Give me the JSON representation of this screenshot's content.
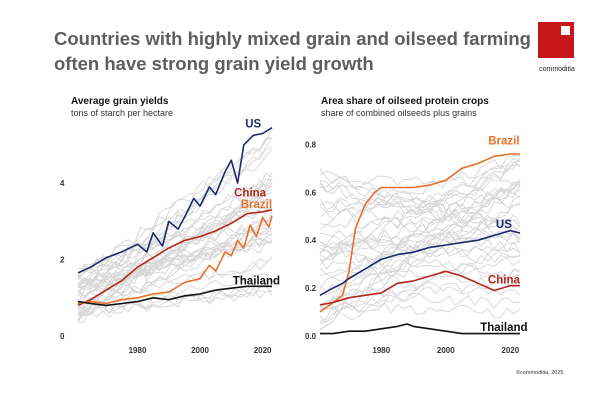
{
  "headline": {
    "line1": "Countries with highly mixed grain and oilseed farming",
    "line2": "often have strong grain yield growth"
  },
  "logo": {
    "text": "commoditia"
  },
  "footer": {
    "credit": "©commoditia, 2025"
  },
  "colors": {
    "US": "#1b2a6b",
    "China": "#b3261e",
    "Brazil": "#e8702a",
    "Thailand": "#111111",
    "background_series": "#d6d6d6",
    "accent_red": "#c8161d"
  },
  "chart_data": [
    {
      "type": "line",
      "title": "Average grain yields",
      "subtitle": "tons of starch per hectare",
      "xlabel": "",
      "ylabel": "",
      "xlim": [
        1961,
        2023
      ],
      "ylim": [
        0,
        5.6
      ],
      "xticks": [
        1980,
        2000,
        2020
      ],
      "yticks": [
        0,
        2,
        4
      ],
      "background_series_count": 40,
      "background_range": {
        "start_low": 0.4,
        "start_high": 1.8,
        "end_low": 0.6,
        "end_high": 5.6
      },
      "series": [
        {
          "name": "US",
          "label_at": [
            2017,
            5.45
          ],
          "x": [
            1961,
            1965,
            1970,
            1975,
            1980,
            1983,
            1985,
            1988,
            1990,
            1993,
            1995,
            1998,
            2000,
            2003,
            2005,
            2008,
            2010,
            2012,
            2014,
            2017,
            2020,
            2023
          ],
          "y": [
            1.65,
            1.8,
            2.05,
            2.2,
            2.4,
            2.2,
            2.7,
            2.35,
            3.0,
            2.8,
            3.1,
            3.6,
            3.4,
            3.9,
            3.7,
            4.3,
            4.6,
            4.0,
            5.0,
            5.25,
            5.3,
            5.45
          ]
        },
        {
          "name": "China",
          "label_at": [
            2016,
            3.65
          ],
          "x": [
            1961,
            1965,
            1970,
            1975,
            1980,
            1985,
            1990,
            1995,
            2000,
            2005,
            2010,
            2015,
            2020,
            2023
          ],
          "y": [
            0.8,
            0.95,
            1.2,
            1.45,
            1.8,
            2.05,
            2.3,
            2.5,
            2.6,
            2.75,
            2.95,
            3.2,
            3.25,
            3.3
          ]
        },
        {
          "name": "Brazil",
          "label_at": [
            2018,
            3.35
          ],
          "x": [
            1961,
            1965,
            1970,
            1975,
            1980,
            1985,
            1990,
            1995,
            2000,
            2003,
            2005,
            2008,
            2010,
            2012,
            2014,
            2016,
            2018,
            2020,
            2022,
            2023
          ],
          "y": [
            0.85,
            0.9,
            0.85,
            0.95,
            1.0,
            1.1,
            1.15,
            1.4,
            1.5,
            1.85,
            1.7,
            2.2,
            2.1,
            2.5,
            2.3,
            2.9,
            2.6,
            3.1,
            2.85,
            3.15
          ]
        },
        {
          "name": "Thailand",
          "label_at": [
            2018,
            1.35
          ],
          "x": [
            1961,
            1965,
            1970,
            1975,
            1980,
            1985,
            1990,
            1995,
            2000,
            2005,
            2010,
            2015,
            2020,
            2023
          ],
          "y": [
            0.9,
            0.85,
            0.8,
            0.85,
            0.9,
            1.0,
            0.95,
            1.05,
            1.1,
            1.2,
            1.25,
            1.3,
            1.3,
            1.3
          ]
        }
      ]
    },
    {
      "type": "line",
      "title": "Area share of oilseed protein crops",
      "subtitle": "share of combined oilseeds plus grains",
      "xlabel": "",
      "ylabel": "",
      "xlim": [
        1961,
        2023
      ],
      "ylim": [
        0,
        0.86
      ],
      "xticks": [
        1980,
        2000,
        2020
      ],
      "yticks": [
        0.0,
        0.2,
        0.4,
        0.6,
        0.8
      ],
      "background_series_count": 40,
      "background_range": {
        "start_low": 0.0,
        "start_high": 0.7,
        "end_low": 0.01,
        "end_high": 0.75
      },
      "series": [
        {
          "name": "Brazil",
          "label_at": [
            2018,
            0.8
          ],
          "x": [
            1961,
            1965,
            1968,
            1970,
            1972,
            1975,
            1978,
            1980,
            1985,
            1990,
            1995,
            2000,
            2005,
            2010,
            2015,
            2020,
            2023
          ],
          "y": [
            0.1,
            0.14,
            0.17,
            0.27,
            0.45,
            0.55,
            0.6,
            0.62,
            0.62,
            0.62,
            0.63,
            0.65,
            0.7,
            0.72,
            0.75,
            0.76,
            0.76
          ]
        },
        {
          "name": "US",
          "label_at": [
            2018,
            0.45
          ],
          "x": [
            1961,
            1965,
            1968,
            1970,
            1975,
            1980,
            1985,
            1990,
            1995,
            2000,
            2005,
            2010,
            2015,
            2020,
            2023
          ],
          "y": [
            0.17,
            0.2,
            0.22,
            0.24,
            0.28,
            0.32,
            0.34,
            0.35,
            0.37,
            0.38,
            0.39,
            0.4,
            0.42,
            0.44,
            0.43
          ]
        },
        {
          "name": "China",
          "label_at": [
            2018,
            0.22
          ],
          "x": [
            1961,
            1965,
            1970,
            1975,
            1980,
            1985,
            1990,
            1995,
            2000,
            2005,
            2010,
            2015,
            2020,
            2023
          ],
          "y": [
            0.13,
            0.14,
            0.16,
            0.17,
            0.18,
            0.22,
            0.23,
            0.25,
            0.27,
            0.25,
            0.22,
            0.19,
            0.21,
            0.21
          ]
        },
        {
          "name": "Thailand",
          "label_at": [
            2018,
            0.02
          ],
          "x": [
            1961,
            1965,
            1970,
            1975,
            1980,
            1985,
            1988,
            1990,
            1995,
            2000,
            2005,
            2010,
            2015,
            2020,
            2023
          ],
          "y": [
            0.01,
            0.01,
            0.02,
            0.02,
            0.03,
            0.04,
            0.05,
            0.04,
            0.03,
            0.02,
            0.01,
            0.01,
            0.01,
            0.01,
            0.01
          ]
        }
      ]
    }
  ]
}
